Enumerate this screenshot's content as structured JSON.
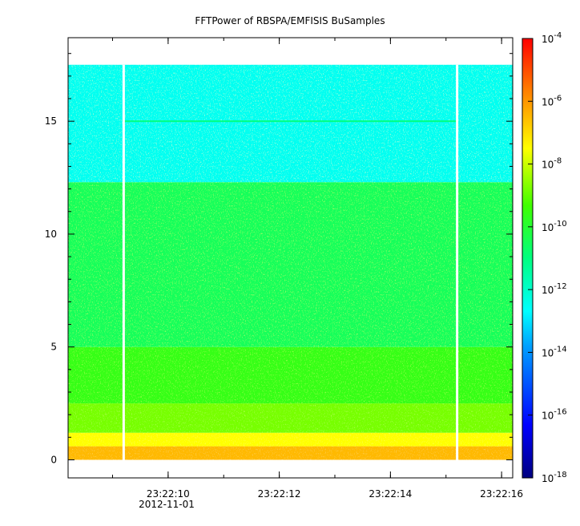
{
  "chart_data": {
    "type": "heatmap",
    "title": "FFTPower of RBSPA/EMFISIS  BuSamples",
    "xlabel": "",
    "ylabel": "",
    "date_label": "2012-11-01",
    "x_ticks": [
      "23:22:10",
      "23:22:12",
      "23:22:14",
      "23:22:16"
    ],
    "y_ticks": [
      "0",
      "5",
      "10",
      "15"
    ],
    "ylim": [
      -0.8,
      18.7
    ],
    "data_ylim": [
      0,
      17.5
    ],
    "xlim_seconds": [
      "23:22:08.2",
      "23:22:16.2"
    ],
    "gaps": [
      "23:22:09.2",
      "23:22:15.2"
    ],
    "colorbar": {
      "scale": "log",
      "range": [
        "1e-18",
        "1e-4"
      ],
      "tick_labels": [
        {
          "base": "10",
          "exp": "-4"
        },
        {
          "base": "10",
          "exp": "-6"
        },
        {
          "base": "10",
          "exp": "-8"
        },
        {
          "base": "10",
          "exp": "-10"
        },
        {
          "base": "10",
          "exp": "-12"
        },
        {
          "base": "10",
          "exp": "-14"
        },
        {
          "base": "10",
          "exp": "-16"
        },
        {
          "base": "10",
          "exp": "-18"
        }
      ]
    },
    "bands": [
      {
        "y_range": [
          0,
          0.6
        ],
        "log_power": -6.5
      },
      {
        "y_range": [
          0.6,
          1.2
        ],
        "log_power": -7.5
      },
      {
        "y_range": [
          1.2,
          2.5
        ],
        "log_power": -8.8
      },
      {
        "y_range": [
          2.5,
          5
        ],
        "log_power": -9.6
      },
      {
        "y_range": [
          5,
          12.3
        ],
        "log_power": -10.5
      },
      {
        "y_range": [
          12.3,
          17.5
        ],
        "log_power": -12.5
      }
    ],
    "line_feature": {
      "y": 15,
      "log_power": -11
    }
  }
}
